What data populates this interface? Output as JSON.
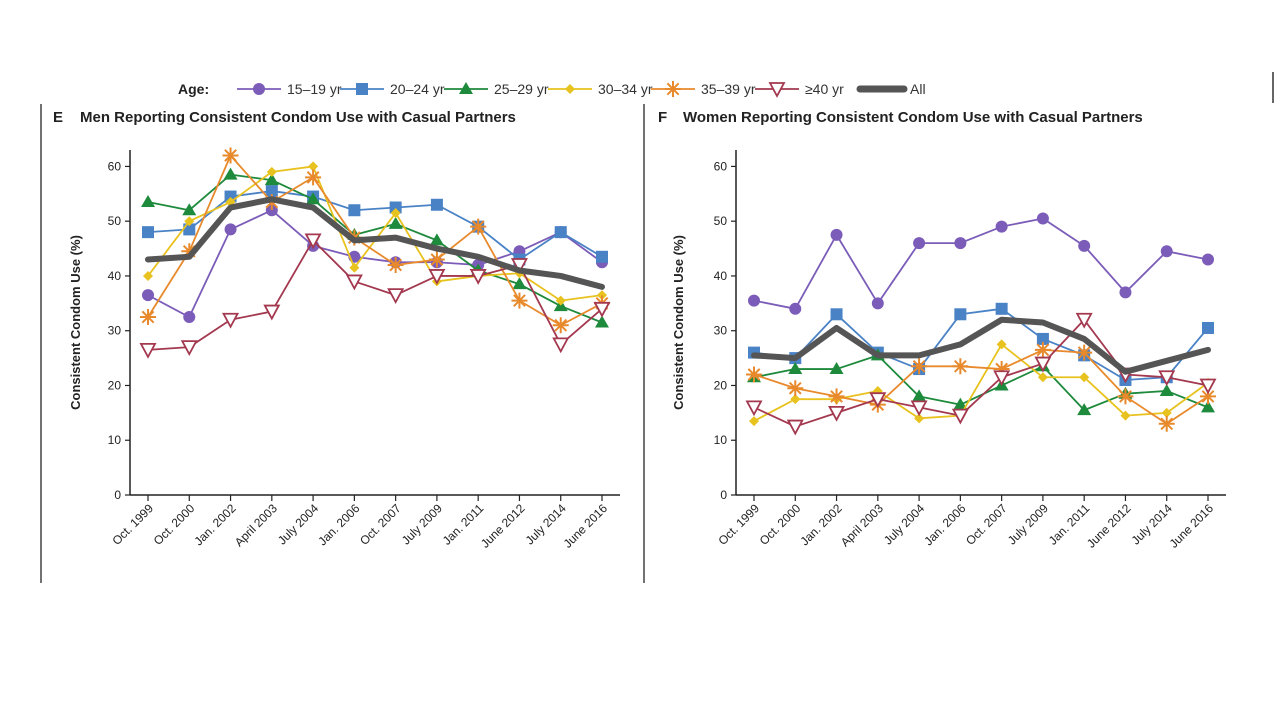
{
  "legend": {
    "heading": "Age:",
    "entries": [
      {
        "label": "15–19 yr",
        "color": "#7b5cb8",
        "marker": "circle"
      },
      {
        "label": "20–24 yr",
        "color": "#4a82c6",
        "marker": "square"
      },
      {
        "label": "25–29 yr",
        "color": "#1e8a3c",
        "marker": "triangle-up"
      },
      {
        "label": "30–34 yr",
        "color": "#e8c21e",
        "marker": "diamond"
      },
      {
        "label": "35–39 yr",
        "color": "#e88a2c",
        "marker": "asterisk"
      },
      {
        "label": "≥40 yr",
        "color": "#a3384f",
        "marker": "triangle-down-open"
      },
      {
        "label": "All",
        "color": "#555555",
        "marker": "thick-line"
      }
    ]
  },
  "chart_data": [
    {
      "panel_letter": "E",
      "type": "line",
      "title": "Men Reporting Consistent Condom Use with Casual Partners",
      "ylabel": "Consistent Condom Use (%)",
      "xlabel": "",
      "ylim": [
        0,
        63
      ],
      "yticks": [
        0,
        10,
        20,
        30,
        40,
        50,
        60
      ],
      "grid": false,
      "legend_position": "top",
      "categories": [
        "Oct. 1999",
        "Oct. 2000",
        "Jan. 2002",
        "April 2003",
        "July 2004",
        "Jan. 2006",
        "Oct. 2007",
        "July 2009",
        "Jan. 2011",
        "June 2012",
        "July 2014",
        "June 2016"
      ],
      "series": [
        {
          "name": "15–19 yr",
          "values": [
            36.5,
            32.5,
            48.5,
            52,
            45.5,
            43.5,
            42.5,
            42.5,
            42,
            44.5,
            48,
            42.5
          ]
        },
        {
          "name": "20–24 yr",
          "values": [
            48,
            48.5,
            54.5,
            55.5,
            54.5,
            52,
            52.5,
            53,
            49,
            43,
            48,
            43.5
          ]
        },
        {
          "name": "25–29 yr",
          "values": [
            53.5,
            52,
            58.5,
            57.5,
            54,
            47.5,
            49.5,
            46.5,
            41,
            38.5,
            34.5,
            31.5
          ]
        },
        {
          "name": "30–34 yr",
          "values": [
            40,
            50,
            53.5,
            59,
            60,
            41.5,
            51.5,
            39,
            40,
            40.5,
            35.5,
            36.5
          ]
        },
        {
          "name": "35–39 yr",
          "values": [
            32.5,
            44.5,
            62,
            53.5,
            58,
            47,
            42,
            43,
            49,
            35.5,
            31,
            35
          ]
        },
        {
          "name": "≥40 yr",
          "values": [
            26.5,
            27,
            32,
            33.5,
            46.5,
            39,
            36.5,
            40,
            40,
            42,
            27.5,
            34
          ]
        },
        {
          "name": "All",
          "values": [
            43,
            43.5,
            52.5,
            54,
            52.5,
            46.5,
            47,
            45,
            43.5,
            41,
            40,
            38
          ]
        }
      ]
    },
    {
      "panel_letter": "F",
      "type": "line",
      "title": "Women Reporting Consistent Condom Use with Casual Partners",
      "ylabel": "Consistent Condom Use (%)",
      "xlabel": "",
      "ylim": [
        0,
        63
      ],
      "yticks": [
        0,
        10,
        20,
        30,
        40,
        50,
        60
      ],
      "grid": false,
      "legend_position": "top",
      "categories": [
        "Oct. 1999",
        "Oct. 2000",
        "Jan. 2002",
        "April 2003",
        "July 2004",
        "Jan. 2006",
        "Oct. 2007",
        "July 2009",
        "Jan. 2011",
        "June 2012",
        "July 2014",
        "June 2016"
      ],
      "series": [
        {
          "name": "15–19 yr",
          "values": [
            35.5,
            34,
            47.5,
            35,
            46,
            46,
            49,
            50.5,
            45.5,
            37,
            44.5,
            43
          ]
        },
        {
          "name": "20–24 yr",
          "values": [
            26,
            25,
            33,
            26,
            23,
            33,
            34,
            28.5,
            25.5,
            21,
            21.5,
            30.5
          ]
        },
        {
          "name": "25–29 yr",
          "values": [
            21.5,
            23,
            23,
            25.5,
            18,
            16.5,
            20,
            23.5,
            15.5,
            18.5,
            19,
            16
          ]
        },
        {
          "name": "30–34 yr",
          "values": [
            13.5,
            17.5,
            17.5,
            19,
            14,
            14.5,
            27.5,
            21.5,
            21.5,
            14.5,
            15,
            20.5
          ]
        },
        {
          "name": "35–39 yr",
          "values": [
            22,
            19.5,
            18,
            16.5,
            23.5,
            23.5,
            23,
            26.5,
            26,
            18,
            13,
            18
          ]
        },
        {
          "name": "≥40 yr",
          "values": [
            16,
            12.5,
            15,
            17.5,
            16,
            14.5,
            21.5,
            24,
            32,
            22,
            21.5,
            20
          ]
        },
        {
          "name": "All",
          "values": [
            25.5,
            25,
            30.5,
            25.5,
            25.5,
            27.5,
            32,
            31.5,
            28.5,
            22.5,
            24.5,
            26.5
          ]
        }
      ]
    }
  ]
}
